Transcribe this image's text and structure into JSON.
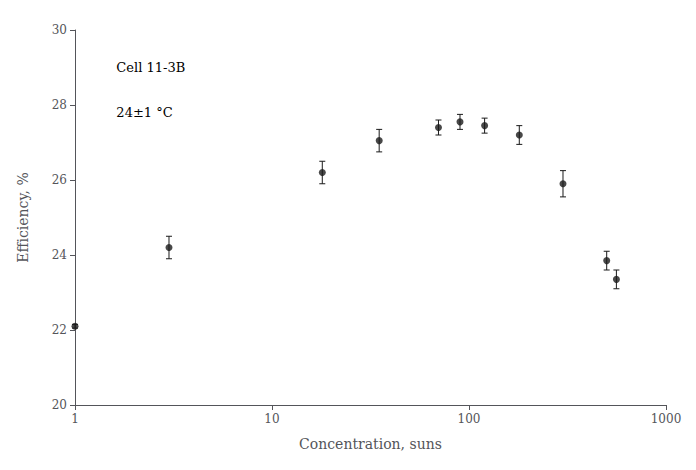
{
  "chart_data": {
    "type": "scatter",
    "x": [
      1,
      3,
      18,
      35,
      70,
      90,
      120,
      180,
      300,
      500,
      560
    ],
    "values": [
      22.1,
      24.2,
      26.2,
      27.05,
      27.4,
      27.55,
      27.45,
      27.2,
      25.9,
      23.85,
      23.35
    ],
    "yerr": [
      0.05,
      0.3,
      0.3,
      0.3,
      0.2,
      0.2,
      0.2,
      0.25,
      0.35,
      0.25,
      0.25
    ],
    "xlim": [
      1,
      1000
    ],
    "ylim": [
      20,
      30
    ],
    "xticks": [
      1,
      10,
      100,
      1000
    ],
    "yticks": [
      20,
      22,
      24,
      26,
      28,
      30
    ],
    "log": "x",
    "grid": false,
    "xlabel": "Concentration, suns",
    "ylabel": "Efficiency, %",
    "annotations": [
      "Cell 11-3B",
      "24±1 °C"
    ],
    "color": "#1a1a1a",
    "marker": "circle"
  }
}
